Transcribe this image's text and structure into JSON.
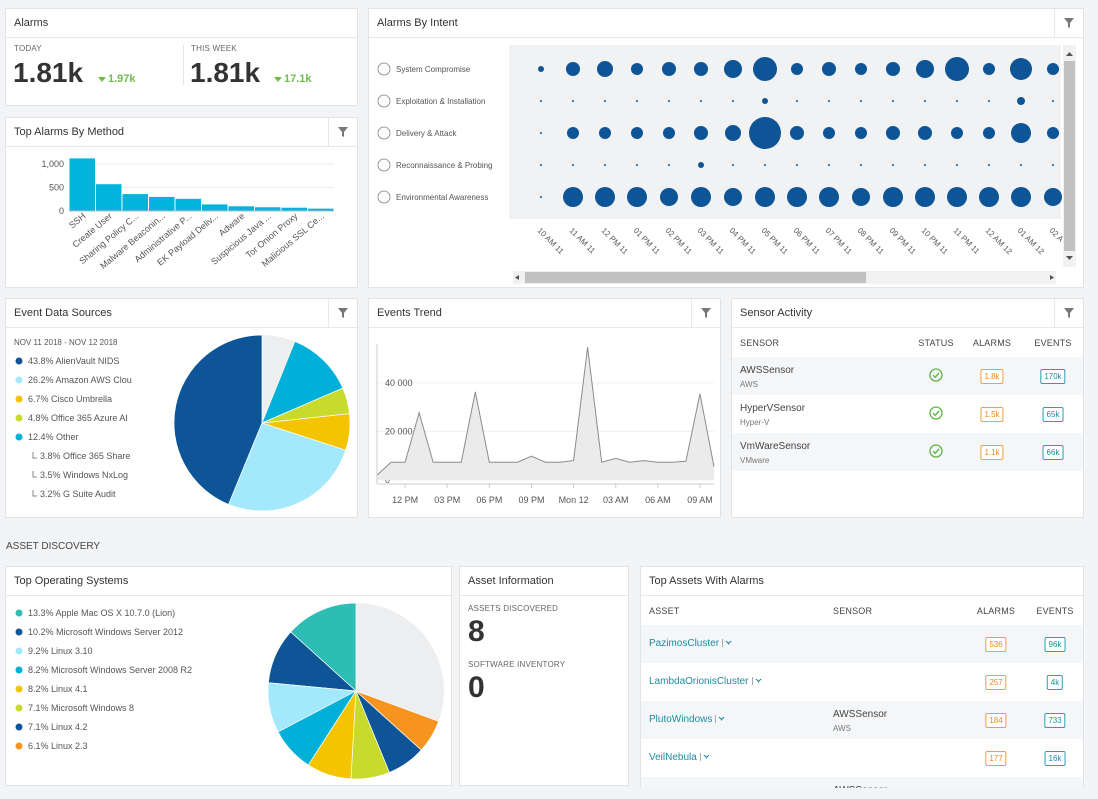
{
  "alarms": {
    "title": "Alarms",
    "today": {
      "label": "TODAY",
      "value": "1.81k",
      "change": "1.97k"
    },
    "week": {
      "label": "THIS WEEK",
      "value": "1.81k",
      "change": "17.1k"
    }
  },
  "section": "ASSET DISCOVERY",
  "sensor_activity": {
    "title": "Sensor Activity",
    "columns": [
      "SENSOR",
      "STATUS",
      "ALARMS",
      "EVENTS"
    ],
    "rows": [
      {
        "sensor": "AWSSensor",
        "type": "AWS",
        "alarms": "1.8k",
        "events": "170k"
      },
      {
        "sensor": "HyperVSensor",
        "type": "Hyper-V",
        "alarms": "1.5k",
        "events": "65k"
      },
      {
        "sensor": "VmWareSensor",
        "type": "VMware",
        "alarms": "1.1k",
        "events": "66k"
      }
    ]
  },
  "asset_information": {
    "title": "Asset Information",
    "assets_label": "ASSETS DISCOVERED",
    "assets": 8,
    "software_label": "SOFTWARE INVENTORY",
    "software": 0
  },
  "top_assets": {
    "title": "Top Assets With Alarms",
    "columns": [
      "ASSET",
      "SENSOR",
      "ALARMS",
      "EVENTS"
    ],
    "rows": [
      {
        "asset": "PazimosCluster",
        "alarms": 536,
        "events": "96k"
      },
      {
        "asset": "LambdaOrionisCluster",
        "alarms": 257,
        "events": "4k"
      },
      {
        "asset": "PlutoWindows",
        "sensor": "AWSSensor",
        "sensor_type": "AWS",
        "alarms": 184,
        "events": 733
      },
      {
        "asset": "VeilNebula",
        "alarms": 177,
        "events": "16k"
      },
      {
        "sensor": "AWSSensor"
      }
    ]
  },
  "chart_data": [
    {
      "type": "bar",
      "title": "Top Alarms By Method",
      "categories": [
        "SSH",
        "Create User",
        "Sharing Policy C...",
        "Malware Beaconin...",
        "Administrative P...",
        "EK Payload Deliv...",
        "Adware",
        "Suspicious Java ...",
        "Tor Onion Proxy",
        "Malicious SSL Ce..."
      ],
      "values": [
        1120,
        570,
        360,
        300,
        260,
        140,
        100,
        80,
        70,
        50
      ],
      "color": "#00b4dc",
      "ylim": [
        0,
        1150
      ],
      "yticks": [
        0,
        500,
        {
          "value": 1000,
          "label": "1,000"
        }
      ],
      "grid": true
    },
    {
      "type": "bubble",
      "title": "Alarms By Intent",
      "color": "#0d5596",
      "categories": [
        "10 AM 11",
        "11 AM 11",
        "12 PM 11",
        "01 PM 11",
        "02 PM 11",
        "03 PM 11",
        "04 PM 11",
        "05 PM 11",
        "06 PM 11",
        "07 PM 11",
        "08 PM 11",
        "09 PM 11",
        "10 PM 11",
        "11 PM 11",
        "12 AM 12",
        "01 AM 12",
        "02 A"
      ],
      "series": [
        {
          "name": "System Compromise",
          "values": [
            9,
            49,
            64,
            36,
            49,
            49,
            81,
            144,
            36,
            49,
            36,
            49,
            81,
            144,
            36,
            121,
            36
          ]
        },
        {
          "name": "Exploitation & Installation",
          "values": [
            1,
            1,
            1,
            1,
            1,
            1,
            1,
            9,
            1,
            1,
            1,
            1,
            1,
            1,
            1,
            16,
            1
          ]
        },
        {
          "name": "Delivery & Attack",
          "values": [
            1,
            36,
            36,
            36,
            36,
            49,
            64,
            256,
            49,
            36,
            36,
            49,
            49,
            36,
            36,
            100,
            36
          ]
        },
        {
          "name": "Reconnaissance & Probing",
          "values": [
            1,
            1,
            1,
            1,
            1,
            9,
            1,
            1,
            1,
            1,
            1,
            1,
            1,
            1,
            1,
            1,
            1
          ]
        },
        {
          "name": "Environmental Awareness",
          "values": [
            1,
            100,
            100,
            100,
            81,
            100,
            81,
            100,
            100,
            100,
            81,
            100,
            100,
            100,
            100,
            100,
            81
          ]
        }
      ]
    },
    {
      "type": "pie",
      "title": "Event Data Sources",
      "subtitle": "NOV 11 2018 - NOV 12 2018",
      "items": [
        {
          "label": "43.8% AlienVault NIDS",
          "value": 43.8,
          "color": "#0d5596"
        },
        {
          "label": "26.2% Amazon AWS Clou",
          "value": 26.2,
          "color": "#a3e9fb"
        },
        {
          "label": "6.7% Cisco Umbrella",
          "value": 6.7,
          "color": "#f5c400"
        },
        {
          "label": "4.8% Office 365 Azure AI",
          "value": 4.8,
          "color": "#c8da2b"
        },
        {
          "label": "12.4% Other",
          "value": 12.4,
          "color": "#00b0d8"
        }
      ],
      "sub_items": [
        "3.8% Office 365 Share",
        "3.5% Windows NxLog",
        "3.2% G Suite Audit"
      ]
    },
    {
      "type": "line",
      "title": "Events Trend",
      "color": "#8c8c8c",
      "categories": [
        null,
        null,
        "12 PM",
        null,
        null,
        "03 PM",
        null,
        null,
        "06 PM",
        null,
        null,
        "09 PM",
        null,
        null,
        "Mon 12",
        null,
        null,
        "03 AM",
        null,
        null,
        "06 AM",
        null,
        null,
        "09 AM",
        null
      ],
      "values": [
        2000,
        7300,
        7300,
        27700,
        7300,
        7300,
        7300,
        36300,
        7300,
        7300,
        7300,
        9800,
        7300,
        7300,
        8000,
        54700,
        7300,
        8900,
        7300,
        8000,
        7300,
        7300,
        7700,
        35500,
        5500
      ],
      "ylim": [
        0,
        56000
      ],
      "yticks": [
        0,
        {
          "value": 20000,
          "label": "20 000"
        },
        {
          "value": 40000,
          "label": "40 000"
        }
      ]
    },
    {
      "type": "pie",
      "title": "Top Operating Systems",
      "items": [
        {
          "label": "13.3% Apple Mac OS X 10.7.0 (Lion)",
          "value": 13.3,
          "color": "#2ebdb4"
        },
        {
          "label": "10.2% Microsoft Windows Server 2012",
          "value": 10.2,
          "color": "#0d5596"
        },
        {
          "label": "9.2% Linux 3.10",
          "value": 9.2,
          "color": "#a3e9fb"
        },
        {
          "label": "8.2% Microsoft Windows Server 2008 R2",
          "value": 8.2,
          "color": "#00b0d8"
        },
        {
          "label": "8.2% Linux 4.1",
          "value": 8.2,
          "color": "#f5c400"
        },
        {
          "label": "7.1% Microsoft Windows 8",
          "value": 7.1,
          "color": "#c8da2b"
        },
        {
          "label": "7.1% Linux 4.2",
          "value": 7.1,
          "color": "#0d5596"
        },
        {
          "label": "6.1% Linux 2.3",
          "value": 6.1,
          "color": "#f7941d"
        }
      ]
    }
  ]
}
